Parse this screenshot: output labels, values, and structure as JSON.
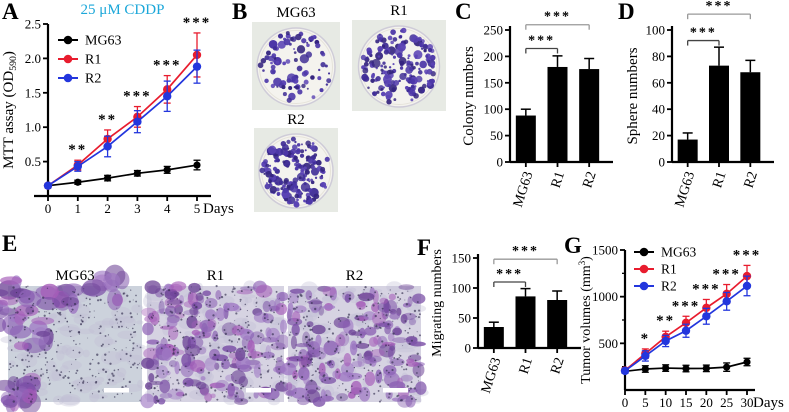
{
  "colors": {
    "mg63": "#000000",
    "r1": "#e81c2e",
    "r2": "#2336dd",
    "title_cyan": "#1ba7d9",
    "bar": "#000000",
    "colony_purple": "#4b3b9e",
    "stain_purple": "#8e44ad"
  },
  "panels": {
    "A": {
      "letter": "A"
    },
    "B": {
      "letter": "B",
      "images": [
        {
          "label": "MG63"
        },
        {
          "label": "R1"
        },
        {
          "label": "R2"
        }
      ]
    },
    "C": {
      "letter": "C"
    },
    "D": {
      "letter": "D"
    },
    "E": {
      "letter": "E",
      "images": [
        {
          "label": "MG63"
        },
        {
          "label": "R1"
        },
        {
          "label": "R2"
        }
      ]
    },
    "F": {
      "letter": "F"
    },
    "G": {
      "letter": "G"
    }
  },
  "chart_data": [
    {
      "id": "A",
      "type": "line",
      "title": "25 μM CDDP",
      "title_color": "#1ba7d9",
      "xlabel": "Days",
      "ylabel_parts": [
        {
          "t": "MTT assay (OD"
        },
        {
          "t": "590",
          "sub": true
        },
        {
          "t": ")"
        }
      ],
      "x": [
        0,
        1,
        2,
        3,
        4,
        5
      ],
      "xlim": [
        0,
        5
      ],
      "ylim": [
        0,
        2.5
      ],
      "yticks": [
        0.5,
        1.0,
        1.5,
        2.0,
        2.5
      ],
      "legend_position": "top-left",
      "series": [
        {
          "name": "MG63",
          "color": "#000000",
          "values": [
            0.15,
            0.2,
            0.26,
            0.33,
            0.38,
            0.45
          ],
          "errors": [
            0.02,
            0.03,
            0.04,
            0.04,
            0.05,
            0.07
          ]
        },
        {
          "name": "R1",
          "color": "#e81c2e",
          "values": [
            0.15,
            0.45,
            0.83,
            1.15,
            1.55,
            2.05
          ],
          "errors": [
            0.03,
            0.07,
            0.13,
            0.15,
            0.2,
            0.32
          ]
        },
        {
          "name": "R2",
          "color": "#2336dd",
          "values": [
            0.15,
            0.43,
            0.72,
            1.08,
            1.45,
            1.88
          ],
          "errors": [
            0.03,
            0.07,
            0.15,
            0.16,
            0.22,
            0.24
          ]
        }
      ],
      "significance": [
        {
          "x": 1,
          "label": "**"
        },
        {
          "x": 2,
          "label": "**"
        },
        {
          "x": 3,
          "label": "***"
        },
        {
          "x": 4,
          "label": "***"
        },
        {
          "x": 5,
          "label": "***"
        }
      ]
    },
    {
      "id": "C",
      "type": "bar",
      "ylabel": "Colony numbers",
      "categories": [
        "MG63",
        "R1",
        "R2"
      ],
      "values": [
        88,
        180,
        176
      ],
      "errors": [
        12,
        21,
        20
      ],
      "ylim": [
        0,
        250
      ],
      "yticks": [
        0,
        50,
        100,
        150,
        200,
        250
      ],
      "significance": [
        {
          "from": 0,
          "to": 1,
          "label": "***",
          "y": 215
        },
        {
          "from": 0,
          "to": 2,
          "label": "***",
          "y": 260
        }
      ]
    },
    {
      "id": "D",
      "type": "bar",
      "ylabel": "Sphere numbers",
      "categories": [
        "MG63",
        "R1",
        "R2"
      ],
      "values": [
        17,
        73,
        68
      ],
      "errors": [
        5,
        14,
        9
      ],
      "ylim": [
        0,
        100
      ],
      "yticks": [
        0,
        20,
        40,
        60,
        80,
        100
      ],
      "significance": [
        {
          "from": 0,
          "to": 1,
          "label": "***",
          "y": 92
        },
        {
          "from": 0,
          "to": 2,
          "label": "***",
          "y": 112
        }
      ]
    },
    {
      "id": "F",
      "type": "bar",
      "ylabel": "Migrating numbers",
      "categories": [
        "MG63",
        "R1",
        "R2"
      ],
      "values": [
        35,
        86,
        80
      ],
      "errors": [
        8,
        13,
        15
      ],
      "ylim": [
        0,
        150
      ],
      "yticks": [
        0,
        50,
        100,
        150
      ],
      "significance": [
        {
          "from": 0,
          "to": 1,
          "label": "***",
          "y": 110
        },
        {
          "from": 0,
          "to": 2,
          "label": "***",
          "y": 148
        }
      ]
    },
    {
      "id": "G",
      "type": "line",
      "xlabel": "Days",
      "ylabel_parts": [
        {
          "t": "Tumor volumes (mm"
        },
        {
          "t": "3",
          "sup": true
        },
        {
          "t": ")"
        }
      ],
      "x": [
        0,
        5,
        10,
        15,
        20,
        25,
        30
      ],
      "xlim": [
        0,
        30
      ],
      "ylim": [
        0,
        1500
      ],
      "yticks": [
        500,
        1000,
        1500
      ],
      "yminor": 250,
      "legend_position": "top-left",
      "series": [
        {
          "name": "MG63",
          "color": "#000000",
          "values": [
            200,
            225,
            235,
            230,
            232,
            245,
            300
          ],
          "errors": [
            20,
            35,
            35,
            35,
            35,
            45,
            40
          ]
        },
        {
          "name": "R1",
          "color": "#e81c2e",
          "values": [
            210,
            390,
            570,
            720,
            880,
            1030,
            1220
          ],
          "errors": [
            25,
            50,
            60,
            70,
            90,
            100,
            115
          ]
        },
        {
          "name": "R2",
          "color": "#2336dd",
          "values": [
            205,
            365,
            525,
            635,
            790,
            950,
            1115
          ],
          "errors": [
            25,
            55,
            60,
            70,
            85,
            95,
            105
          ]
        }
      ],
      "significance": [
        {
          "x": 5,
          "label": "*"
        },
        {
          "x": 10,
          "label": "**"
        },
        {
          "x": 15,
          "label": "***"
        },
        {
          "x": 20,
          "label": "***"
        },
        {
          "x": 25,
          "label": "***"
        },
        {
          "x": 30,
          "label": "***"
        }
      ]
    }
  ]
}
